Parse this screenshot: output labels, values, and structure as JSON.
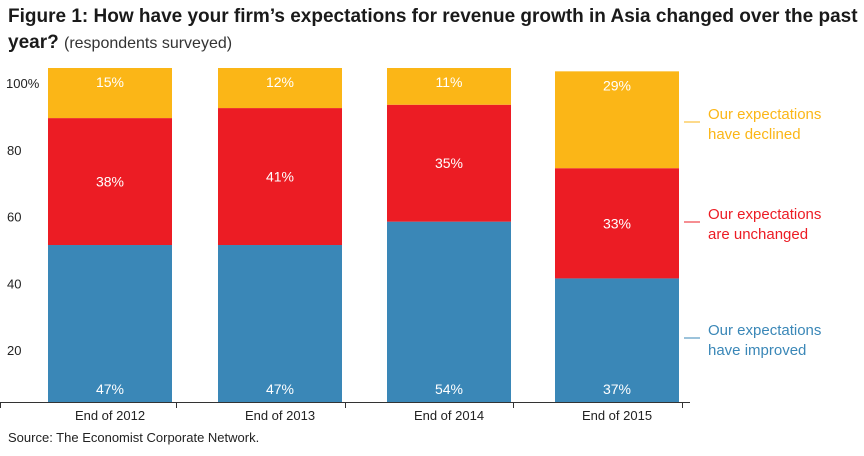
{
  "header": {
    "title": "Figure 1: How have your firm’s expectations for revenue growth in Asia changed over the past year?",
    "subtitle": "(respondents surveyed)"
  },
  "footer": {
    "source": "Source: The Economist Corporate Network."
  },
  "chart_data": {
    "type": "bar",
    "stacked": true,
    "title": "Figure 1: How have your firm’s expectations for revenue growth in Asia changed over the past year?",
    "subtitle": "(respondents surveyed)",
    "categories": [
      "End of 2012",
      "End of 2013",
      "End of 2014",
      "End of 2015"
    ],
    "series": [
      {
        "name": "Our expectations have improved",
        "values": [
          47,
          47,
          54,
          37
        ],
        "color": "#3a87b7"
      },
      {
        "name": "Our expectations are unchanged",
        "values": [
          38,
          41,
          35,
          33
        ],
        "color": "#ec1c24"
      },
      {
        "name": "Our expectations have declined",
        "values": [
          15,
          12,
          11,
          29
        ],
        "color": "#fbb617"
      }
    ],
    "data_labels": [
      [
        "47%",
        "47%",
        "54%",
        "37%"
      ],
      [
        "38%",
        "41%",
        "35%",
        "33%"
      ],
      [
        "15%",
        "12%",
        "11%",
        "29%"
      ]
    ],
    "legend": [
      {
        "lines": [
          "Our expectations",
          "have declined"
        ],
        "color": "#fbb617"
      },
      {
        "lines": [
          "Our expectations",
          "are unchanged"
        ],
        "color": "#ec1c24"
      },
      {
        "lines": [
          "Our expectations",
          "have improved"
        ],
        "color": "#3a87b7"
      }
    ],
    "legend_position": "right",
    "yticks": [
      "20",
      "40",
      "60",
      "80",
      "100%"
    ],
    "ytick_values": [
      20,
      40,
      60,
      80,
      100
    ],
    "ylim": [
      0,
      100
    ],
    "grid": false
  }
}
